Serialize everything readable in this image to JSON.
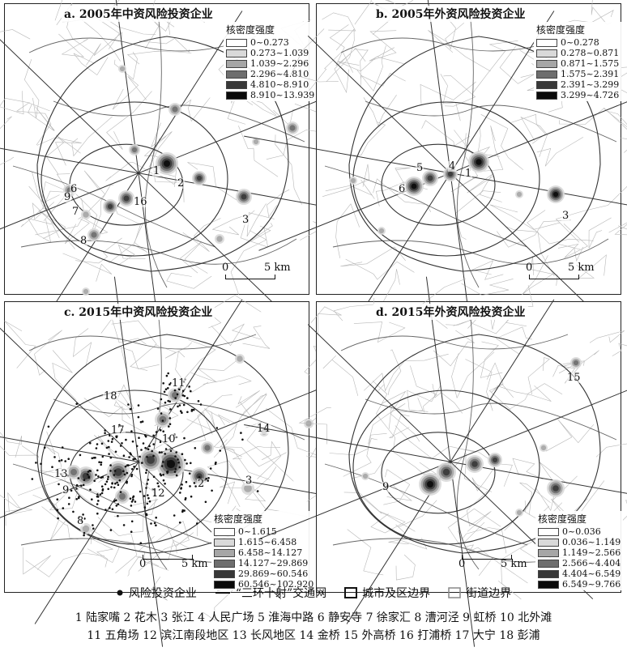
{
  "panels": [
    {
      "title": "a. 2005年中资风险投资企业",
      "legend_title": "核密度强度",
      "legend": [
        "0~0.273",
        "0.273~1.039",
        "1.039~2.296",
        "2.296~4.810",
        "4.810~8.910",
        "8.910~13.939"
      ],
      "scale_zero": "0",
      "scale_label": "5 km",
      "labels": [
        "1",
        "2",
        "3",
        "6",
        "7",
        "8",
        "9",
        "16"
      ]
    },
    {
      "title": "b. 2005年外资风险投资企业",
      "legend_title": "核密度强度",
      "legend": [
        "0~0.278",
        "0.278~0.871",
        "0.871~1.575",
        "1.575~2.391",
        "2.391~3.299",
        "3.299~4.726"
      ],
      "scale_zero": "0",
      "scale_label": "5 km",
      "labels": [
        "5",
        "4",
        "1",
        "6",
        "3"
      ]
    },
    {
      "title": "c. 2015年中资风险投资企业",
      "legend_title": "核密度强度",
      "legend": [
        "0~1.615",
        "1.615~6.458",
        "6.458~14.127",
        "14.127~29.869",
        "29.869~60.546",
        "60.546~102.920"
      ],
      "scale_zero": "0",
      "scale_label": "5 km",
      "labels": [
        "11",
        "18",
        "17",
        "14",
        "10",
        "13",
        "9",
        "12",
        "2",
        "3",
        "8"
      ]
    },
    {
      "title": "d. 2015年外资风险投资企业",
      "legend_title": "核密度强度",
      "legend": [
        "0~0.036",
        "0.036~1.149",
        "1.149~2.566",
        "2.566~4.404",
        "4.404~6.549",
        "6.549~9.766"
      ],
      "scale_zero": "0",
      "scale_label": "5 km",
      "labels": [
        "15",
        "9"
      ]
    }
  ],
  "legend_colors": [
    "#ffffff",
    "#d9d9d9",
    "#a6a6a6",
    "#6e6e6e",
    "#383838",
    "#0a0a0a"
  ],
  "map_legend": {
    "firm": "风险投资企业",
    "road": "“三环十射”交通网",
    "district": "城市及区边界",
    "street": "街道边界"
  },
  "place_names_line1": "1 陆家嘴  2 花木  3 张江  4 人民广场  5 淮海中路  6 静安寺  7 徐家汇  8 漕河泾  9 虹桥  10 北外滩",
  "place_names_line2": "11 五角场  12 滨江南段地区  13 长风地区  14 金桥  15 外高桥  16 打浦桥  17 大宁  18 彭浦"
}
